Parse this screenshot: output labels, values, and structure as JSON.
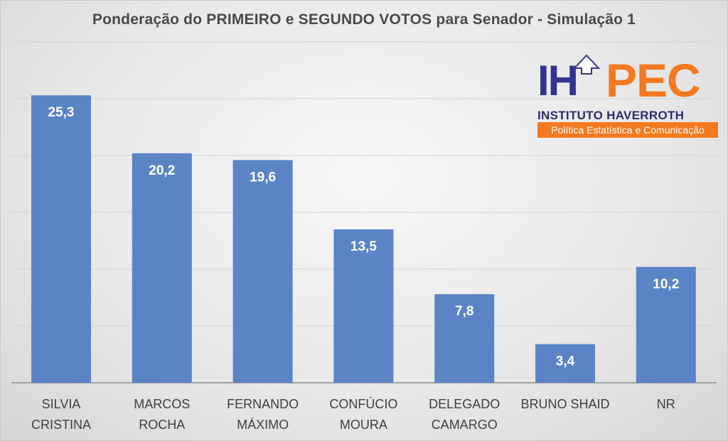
{
  "chart_data": {
    "type": "bar",
    "title": "Ponderação do PRIMEIRO e SEGUNDO VOTOS para Senador - Simulação 1",
    "categories": [
      [
        "SILVIA",
        "CRISTINA"
      ],
      [
        "MARCOS",
        "ROCHA"
      ],
      [
        "FERNANDO",
        "MÁXIMO"
      ],
      [
        "CONFÚCIO",
        "MOURA"
      ],
      [
        "DELEGADO",
        "CAMARGO"
      ],
      [
        "BRUNO  SHAID"
      ],
      [
        "NR"
      ]
    ],
    "values": [
      25.3,
      20.2,
      19.6,
      13.5,
      7.8,
      3.4,
      10.2
    ],
    "value_labels": [
      "25,3",
      "20,2",
      "19,6",
      "13,5",
      "7,8",
      "3,4",
      "10,2"
    ],
    "ylim": [
      0,
      30
    ],
    "gridlines": [
      5,
      10,
      15,
      20,
      25,
      30
    ],
    "grid": true,
    "xlabel": "",
    "ylabel": "",
    "bar_color": "#5b84c6",
    "data_label_color": "#ffffff"
  },
  "logo": {
    "letters_left": "IH",
    "letters_right": "PEC",
    "institute": "INSTITUTO HAVERROTH",
    "tagline": "Política Estatística e Comunicação",
    "colors": {
      "navy": "#33348e",
      "orange": "#f47920"
    }
  }
}
